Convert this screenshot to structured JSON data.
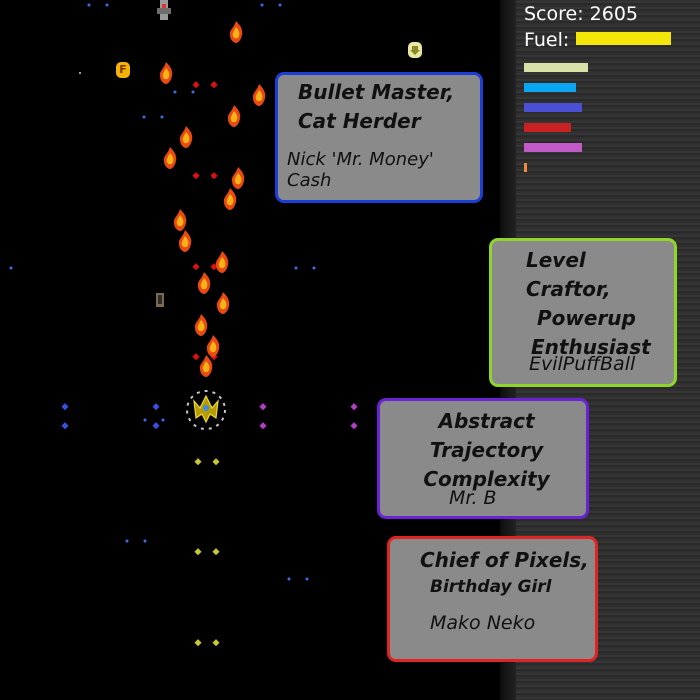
{
  "hud": {
    "score_label": "Score:",
    "score_value": "2605",
    "fuel_label": "Fuel:",
    "fuel_color": "#f5e60a",
    "fuel_level": 1.0,
    "ammo_bars": [
      {
        "color": "#d8e2a8",
        "level": 0.68
      },
      {
        "color": "#0aa6f2",
        "level": 0.55
      },
      {
        "color": "#4b4fd6",
        "level": 0.62
      },
      {
        "color": "#c82222",
        "level": 0.5
      },
      {
        "color": "#c25ac8",
        "level": 0.62
      },
      {
        "color": "#f08a3a",
        "level": 0.03
      }
    ]
  },
  "credits": [
    {
      "role_lines": [
        "Bullet Master,",
        "Cat Herder"
      ],
      "name": "Nick 'Mr. Money' Cash",
      "color": "#1a3fd8"
    },
    {
      "role_lines": [
        "Level Craftor,",
        "Powerup",
        "Enthusiast"
      ],
      "name": "EvilPuffBall",
      "color": "#8ed62a"
    },
    {
      "role_lines": [
        "Abstract Trajectory",
        "Complexity"
      ],
      "name": "Mr. B",
      "color": "#6b22d6"
    },
    {
      "role_lines": [
        "Chief of Pixels,",
        "Birthday Girl"
      ],
      "name": "Mako Neko",
      "color": "#e02424"
    }
  ],
  "field": {
    "player_icon": "yellow-spaceship-icon",
    "enemy_icons": [
      "grey-enemy-ship-icon",
      "flame-projectile-icon"
    ],
    "pickup_icons": [
      "fuel-pickup-icon",
      "arrow-down-pickup-icon",
      "ammo-pickup-icon"
    ],
    "fuel_pickup_letter": "F"
  }
}
